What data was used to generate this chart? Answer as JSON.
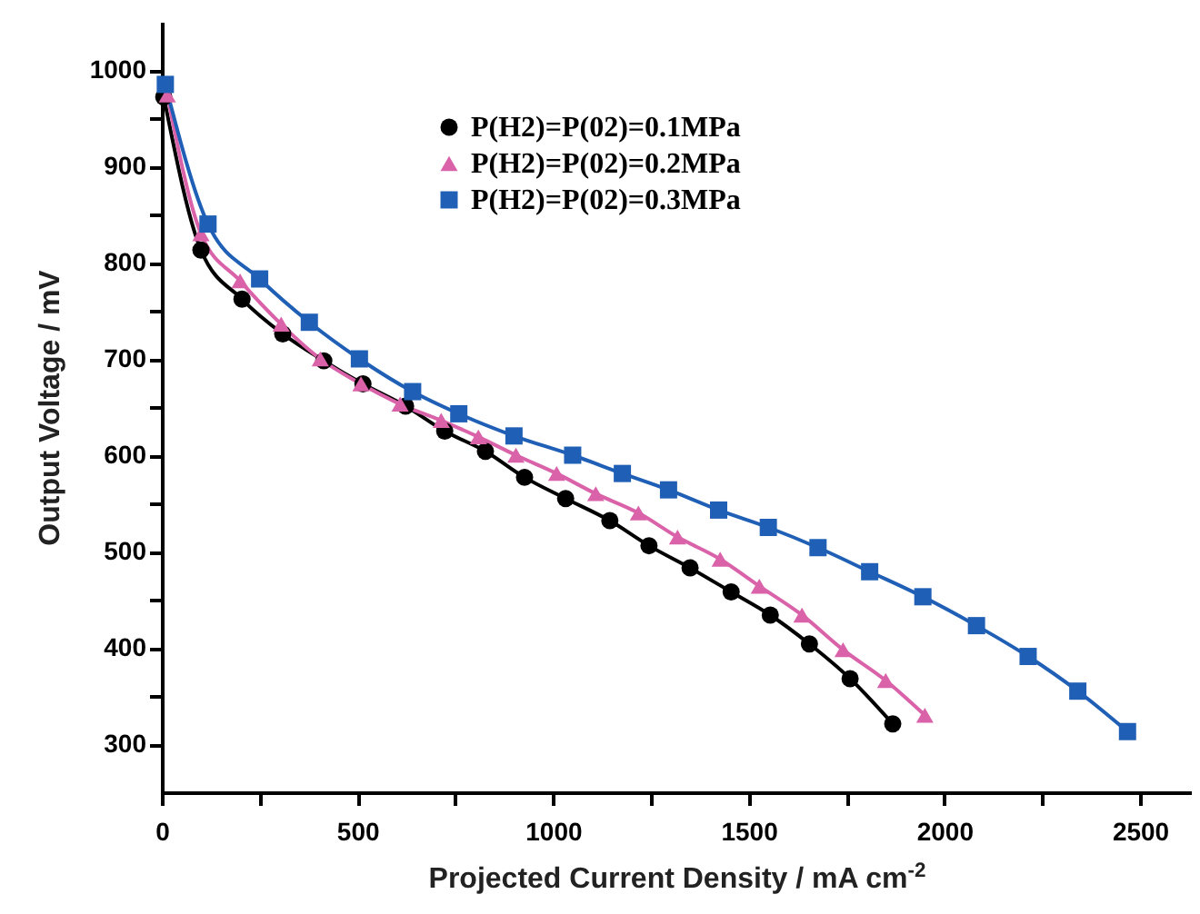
{
  "chart_data": {
    "type": "line",
    "xlabel": "Projected Current Density / mA cm$^{-2}$",
    "ylabel": "Output Voltage / mV",
    "xlim": [
      0,
      2630
    ],
    "ylim": [
      250,
      1050
    ],
    "xticks": [
      0,
      {
        "value": 250,
        "label": null
      },
      500,
      {
        "value": 750,
        "label": null
      },
      1000,
      {
        "value": 1250,
        "label": null
      },
      1500,
      {
        "value": 1750,
        "label": null
      },
      2000,
      {
        "value": 2250,
        "label": null
      },
      2500
    ],
    "yticks": [
      300,
      {
        "value": 350,
        "label": null
      },
      400,
      {
        "value": 450,
        "label": null
      },
      500,
      {
        "value": 550,
        "label": null
      },
      600,
      {
        "value": 650,
        "label": null
      },
      700,
      {
        "value": 750,
        "label": null
      },
      800,
      {
        "value": 850,
        "label": null
      },
      900,
      {
        "value": 950,
        "label": null
      },
      1000
    ],
    "grid": false,
    "legend": "top",
    "series": [
      {
        "name": "P(H2)=P(02)=0.1MPa",
        "color": "#000000",
        "marker": "circle",
        "x": [
          5,
          100,
          205,
          309,
          414,
          514,
          623,
          723,
          827,
          927,
          1032,
          1145,
          1245,
          1350,
          1455,
          1555,
          1655,
          1759,
          1868
        ],
        "values": [
          972,
          813,
          762,
          726,
          698,
          674,
          651,
          625,
          604,
          577,
          555,
          532,
          506,
          483,
          458,
          434,
          404,
          368,
          321
        ]
      },
      {
        "name": "P(H2)=P(02)=0.2MPa",
        "color": "#d962a9",
        "marker": "triangle",
        "x": [
          14,
          100,
          200,
          305,
          405,
          509,
          609,
          714,
          809,
          905,
          1009,
          1109,
          1218,
          1318,
          1427,
          1527,
          1636,
          1741,
          1850,
          1950
        ],
        "values": [
          974,
          830,
          781,
          736,
          700,
          674,
          653,
          636,
          619,
          600,
          581,
          560,
          540,
          515,
          492,
          464,
          434,
          398,
          366,
          330
        ]
      },
      {
        "name": "P(H2)=P(02)=0.3MPa",
        "color": "#1f5fb5",
        "marker": "square",
        "x": [
          9,
          118,
          250,
          377,
          505,
          641,
          759,
          900,
          1050,
          1177,
          1295,
          1423,
          1550,
          1677,
          1809,
          1945,
          2082,
          2214,
          2341,
          2468
        ],
        "values": [
          985,
          840,
          783,
          738,
          700,
          666,
          643,
          620,
          600,
          581,
          564,
          543,
          525,
          504,
          479,
          453,
          423,
          391,
          355,
          313
        ]
      }
    ]
  }
}
